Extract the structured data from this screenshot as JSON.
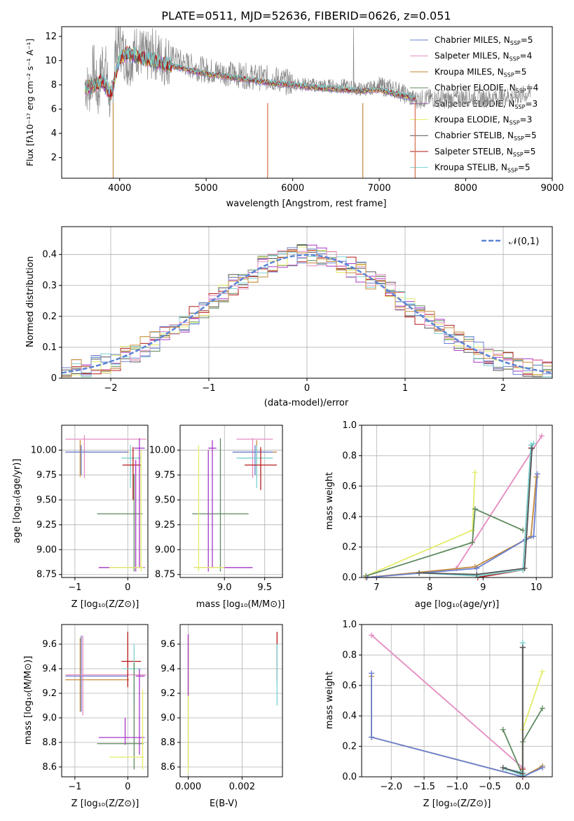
{
  "title": "PLATE=0511, MJD=52636, FIBERID=0626, z=0.051",
  "model_colors": [
    "#6a80d0",
    "#e58bc0",
    "#c48a3c",
    "#5e8a5e",
    "#a637c6",
    "#e4ec6a",
    "#555555",
    "#b51a1a",
    "#7ad1d1"
  ],
  "chart_data": [
    {
      "id": "spectrum",
      "type": "line",
      "xlabel": "wavelength [Angstrom, rest frame]",
      "ylabel": "Flux [fλ10⁻¹⁷ erg cm⁻² s⁻¹ A⁻¹]",
      "xlim": [
        3330,
        9000
      ],
      "ylim": [
        0.3,
        12.8
      ],
      "xticks": [
        "4000",
        "5000",
        "6000",
        "7000",
        "8000",
        "9000"
      ],
      "yticks": [
        "2",
        "4",
        "6",
        "8",
        "10",
        "12"
      ],
      "grid": false,
      "legend": "top-right",
      "data_series": {
        "name": "data",
        "x": [
          3600,
          3650,
          3700,
          3750,
          3800,
          3850,
          3900,
          3950,
          4000,
          4100,
          4200,
          4300,
          4400,
          4500,
          4600,
          4800,
          5000,
          5200,
          5400,
          5600,
          5800,
          6000,
          6200,
          6400,
          6600,
          6800,
          7000,
          7200,
          7400,
          7600,
          7800,
          8000,
          8200,
          8400,
          8600,
          8750
        ],
        "y": [
          8.0,
          7.6,
          9.5,
          7.0,
          10.0,
          9.0,
          6.0,
          10.8,
          11.4,
          9.8,
          11.0,
          10.2,
          10.6,
          10.0,
          10.2,
          9.6,
          9.2,
          9.0,
          8.8,
          8.6,
          8.5,
          8.1,
          8.0,
          7.9,
          7.9,
          7.6,
          7.9,
          7.6,
          6.8,
          6.9,
          6.8,
          7.0,
          6.9,
          7.0,
          7.1,
          7.3
        ]
      },
      "model_series": {
        "x": [
          3600,
          3700,
          3800,
          3900,
          4000,
          4100,
          4200,
          4300,
          4400,
          4500,
          4600,
          4800,
          5000,
          5200,
          5400,
          5600,
          5800,
          6000,
          6200,
          6400,
          6600,
          6800,
          7000,
          7200,
          7400
        ],
        "y": [
          7.8,
          7.9,
          8.3,
          7.2,
          10.2,
          10.6,
          10.4,
          10.1,
          10.0,
          9.7,
          9.6,
          9.2,
          8.9,
          8.7,
          8.5,
          8.3,
          8.1,
          8.0,
          7.8,
          7.7,
          7.6,
          7.5,
          7.6,
          7.2,
          6.9
        ]
      },
      "legend_entries": [
        {
          "label": "Chabrier MILES, N",
          "n": "=5"
        },
        {
          "label": "Salpeter MILES, N",
          "n": "=4"
        },
        {
          "label": "Kroupa MILES, N",
          "n": "=5"
        },
        {
          "label": "Chabrier ELODIE, N",
          "n": "=4"
        },
        {
          "label": "Salpeter ELODIE, N",
          "n": "=3"
        },
        {
          "label": "Kroupa ELODIE, N",
          "n": "=3"
        },
        {
          "label": "Chabrier STELIB, N",
          "n": "=5"
        },
        {
          "label": "Salpeter STELIB, N",
          "n": "=5"
        },
        {
          "label": "Kroupa STELIB, N",
          "n": "=5"
        }
      ]
    },
    {
      "id": "residuals",
      "type": "line",
      "xlabel": "(data-model)/error",
      "ylabel": "Normed distribution",
      "xlim": [
        -2.5,
        2.5
      ],
      "ylim": [
        0,
        0.49
      ],
      "xticks": [
        -2,
        -1,
        0,
        1,
        2
      ],
      "yticks": [
        0.0,
        0.1,
        0.2,
        0.3,
        0.4
      ],
      "grid": true,
      "legend": "top-right",
      "legend_label": "𝒩(0,1)",
      "gaussian": {
        "mu": 0,
        "sigma": 1,
        "color": "#5b84d4"
      }
    },
    {
      "id": "age_vs_Z",
      "type": "scatter",
      "xlabel": "Z [log₁₀(Z/Z⊙)]",
      "ylabel": "age  [log₁₀(age/yr)]",
      "xlim": [
        -1.25,
        0.38
      ],
      "ylim": [
        8.72,
        10.25
      ],
      "xticks": [
        -1,
        0
      ],
      "yticks": [
        "8.75",
        "9.00",
        "9.25",
        "9.50",
        "9.75",
        "10.00"
      ],
      "grid": true,
      "crosses": [
        {
          "x": -0.82,
          "y": 10.11,
          "xe": [
            -1.18,
            0.35
          ],
          "ye": [
            9.72,
            10.15
          ],
          "c": 1
        },
        {
          "x": -0.9,
          "y": 9.98,
          "xe": [
            -1.18,
            0.02
          ],
          "ye": [
            9.73,
            10.1
          ],
          "c": 2
        },
        {
          "x": -0.88,
          "y": 9.98,
          "xe": [
            -1.18,
            0.0
          ],
          "ye": [
            9.75,
            10.05
          ],
          "c": 0
        },
        {
          "x": 0.05,
          "y": 9.92,
          "xe": [
            -0.12,
            0.25
          ],
          "ye": [
            9.62,
            10.05
          ],
          "c": 8
        },
        {
          "x": 0.1,
          "y": 9.85,
          "xe": [
            -0.1,
            0.25
          ],
          "ye": [
            9.5,
            10.03
          ],
          "c": 7
        },
        {
          "x": 0.12,
          "y": 9.36,
          "xe": [
            -0.58,
            0.28
          ],
          "ye": [
            8.78,
            9.76
          ],
          "c": 3
        },
        {
          "x": 0.22,
          "y": 10.02,
          "xe": [
            0.12,
            0.32
          ],
          "ye": [
            8.82,
            10.12
          ],
          "c": 4
        },
        {
          "x": 0.15,
          "y": 8.82,
          "xe": [
            -0.55,
            0.32
          ],
          "ye": [
            8.78,
            9.9
          ],
          "c": 4
        },
        {
          "x": 0.25,
          "y": 8.82,
          "xe": [
            -0.35,
            0.3
          ],
          "ye": [
            8.78,
            10.0
          ],
          "c": 5
        }
      ]
    },
    {
      "id": "age_vs_mass",
      "type": "scatter",
      "xlabel": "mass [log₁₀(M/M⊙)]",
      "ylabel": "",
      "xlim": [
        8.45,
        9.72
      ],
      "ylim": [
        8.72,
        10.25
      ],
      "xticks": [
        "9.0",
        "9.5"
      ],
      "yticks": [
        "8.75",
        "9.00",
        "9.25",
        "9.50",
        "9.75",
        "10.00"
      ],
      "grid": true,
      "crosses": [
        {
          "x": 9.35,
          "y": 10.11,
          "xe": [
            9.15,
            9.6
          ],
          "ye": [
            9.72,
            10.12
          ],
          "c": 1
        },
        {
          "x": 9.4,
          "y": 9.98,
          "xe": [
            9.12,
            9.65
          ],
          "ye": [
            9.73,
            10.1
          ],
          "c": 2
        },
        {
          "x": 9.38,
          "y": 9.98,
          "xe": [
            9.1,
            9.6
          ],
          "ye": [
            9.75,
            10.05
          ],
          "c": 0
        },
        {
          "x": 9.4,
          "y": 9.92,
          "xe": [
            9.15,
            9.6
          ],
          "ye": [
            9.62,
            10.05
          ],
          "c": 8
        },
        {
          "x": 9.45,
          "y": 9.85,
          "xe": [
            9.25,
            9.65
          ],
          "ye": [
            9.6,
            10.03
          ],
          "c": 7
        },
        {
          "x": 8.95,
          "y": 9.36,
          "xe": [
            8.6,
            9.3
          ],
          "ye": [
            8.78,
            10.12
          ],
          "c": 3
        },
        {
          "x": 8.85,
          "y": 10.02,
          "xe": [
            8.8,
            8.9
          ],
          "ye": [
            8.82,
            10.1
          ],
          "c": 4
        },
        {
          "x": 8.8,
          "y": 8.82,
          "xe": [
            8.62,
            9.35
          ],
          "ye": [
            8.78,
            10.0
          ],
          "c": 4
        },
        {
          "x": 8.68,
          "y": 8.82,
          "xe": [
            8.62,
            9.0
          ],
          "ye": [
            8.78,
            10.05
          ],
          "c": 5
        }
      ]
    },
    {
      "id": "weight_vs_age",
      "type": "line",
      "xlabel": "age  [log₁₀(age/yr)]",
      "ylabel": "mass weight",
      "xlim": [
        6.72,
        10.3
      ],
      "ylim": [
        0,
        1.0
      ],
      "xticks": [
        7,
        8,
        9,
        10
      ],
      "yticks": [
        "0.0",
        "0.2",
        "0.4",
        "0.6",
        "0.8",
        "1.0"
      ],
      "grid": true,
      "series": [
        {
          "c": 1,
          "x": [
            8.5,
            10.1
          ],
          "y": [
            0.06,
            0.93
          ]
        },
        {
          "c": 5,
          "x": [
            6.8,
            8.8,
            8.85
          ],
          "y": [
            0.01,
            0.31,
            0.69
          ]
        },
        {
          "c": 3,
          "x": [
            6.8,
            8.8,
            8.85,
            9.75
          ],
          "y": [
            0.01,
            0.23,
            0.45,
            0.31
          ]
        },
        {
          "c": 2,
          "x": [
            6.8,
            8.85,
            9.8,
            9.9,
            10.0
          ],
          "y": [
            0.0,
            0.07,
            0.25,
            0.27,
            0.66
          ]
        },
        {
          "c": 0,
          "x": [
            6.82,
            8.88,
            9.8,
            9.95,
            10.02
          ],
          "y": [
            0.0,
            0.06,
            0.25,
            0.27,
            0.68
          ]
        },
        {
          "c": 7,
          "x": [
            8.9,
            9.75,
            9.9
          ],
          "y": [
            0.0,
            0.05,
            0.85
          ]
        },
        {
          "c": 8,
          "x": [
            7.8,
            8.9,
            9.75,
            9.9,
            9.95
          ],
          "y": [
            0.03,
            0.01,
            0.05,
            0.87,
            0.88
          ]
        },
        {
          "c": 6,
          "x": [
            7.8,
            8.88,
            9.78,
            9.92
          ],
          "y": [
            0.03,
            0.02,
            0.06,
            0.85
          ]
        }
      ]
    },
    {
      "id": "mass_vs_Z",
      "type": "scatter",
      "xlabel": "Z [log₁₀(Z/Z⊙)]",
      "ylabel": "mass [log₁₀(M/M⊙)]",
      "xlim": [
        -1.25,
        0.38
      ],
      "ylim": [
        8.52,
        9.76
      ],
      "xticks": [
        -1,
        0
      ],
      "yticks": [
        "8.6",
        "8.8",
        "9.0",
        "9.2",
        "9.4",
        "9.6"
      ],
      "grid": true,
      "crosses": [
        {
          "x": -0.9,
          "y": 9.31,
          "xe": [
            -1.18,
            0.02
          ],
          "ye": [
            9.05,
            9.65
          ],
          "c": 2
        },
        {
          "x": -0.88,
          "y": 9.34,
          "xe": [
            -1.18,
            0.0
          ],
          "ye": [
            9.05,
            9.67
          ],
          "c": 0
        },
        {
          "x": -0.85,
          "y": 9.35,
          "xe": [
            -1.18,
            0.35
          ],
          "ye": [
            9.02,
            9.67
          ],
          "c": 1
        },
        {
          "x": 0.0,
          "y": 9.46,
          "xe": [
            -0.12,
            0.25
          ],
          "ye": [
            9.25,
            9.7
          ],
          "c": 7
        },
        {
          "x": 0.12,
          "y": 9.4,
          "xe": [
            -0.1,
            0.25
          ],
          "ye": [
            9.1,
            9.6
          ],
          "c": 8
        },
        {
          "x": 0.12,
          "y": 8.79,
          "xe": [
            -0.58,
            0.3
          ],
          "ye": [
            8.58,
            9.45
          ],
          "c": 3
        },
        {
          "x": 0.22,
          "y": 9.34,
          "xe": [
            0.15,
            0.32
          ],
          "ye": [
            8.7,
            9.4
          ],
          "c": 4
        },
        {
          "x": -0.05,
          "y": 8.84,
          "xe": [
            -0.55,
            0.32
          ],
          "ye": [
            8.78,
            9.0
          ],
          "c": 4
        },
        {
          "x": 0.28,
          "y": 8.68,
          "xe": [
            -0.35,
            0.3
          ],
          "ye": [
            8.58,
            9.23
          ],
          "c": 5
        }
      ]
    },
    {
      "id": "mass_vs_ebv",
      "type": "scatter",
      "xlabel": "E(B-V)",
      "ylabel": "",
      "xlim": [
        -0.0003,
        0.0035
      ],
      "ylim": [
        8.52,
        9.76
      ],
      "xticks": [
        "0.000",
        "0.002"
      ],
      "yticks": [
        "8.6",
        "8.8",
        "9.0",
        "9.2",
        "9.4",
        "9.6"
      ],
      "grid": true,
      "crosses": [
        {
          "x": 0.0,
          "y": 9.3,
          "ye": [
            8.6,
            9.68
          ],
          "c": 2
        },
        {
          "x": 0.0,
          "y": 9.25,
          "ye": [
            8.55,
            9.65
          ],
          "c": 5
        },
        {
          "x": 0.0,
          "y": 9.3,
          "ye": [
            9.18,
            9.68
          ],
          "c": 4
        },
        {
          "x": 0.0033,
          "y": 9.5,
          "ye": [
            9.3,
            9.7
          ],
          "c": 7
        },
        {
          "x": 0.0033,
          "y": 9.4,
          "ye": [
            9.1,
            9.6
          ],
          "c": 8
        }
      ]
    },
    {
      "id": "weight_vs_Z",
      "type": "line",
      "xlabel": "Z [log₁₀(Z/Z⊙)]",
      "ylabel": "mass weight",
      "xlim": [
        -2.45,
        0.45
      ],
      "ylim": [
        0,
        1.0
      ],
      "xticks": [
        "−2.0",
        "−1.5",
        "−1.0",
        "−0.5",
        "0.0"
      ],
      "yticks": [
        "0.0",
        "0.2",
        "0.4",
        "0.6",
        "0.8",
        "1.0"
      ],
      "xtick_values": [
        -2.0,
        -1.5,
        -1.0,
        -0.5,
        0.0
      ],
      "grid": true,
      "series": [
        {
          "c": 1,
          "x": [
            -2.3,
            0.0
          ],
          "y": [
            0.93,
            0.06
          ]
        },
        {
          "c": 5,
          "x": [
            0.0,
            0.0,
            0.3
          ],
          "y": [
            0.01,
            0.31,
            0.69
          ]
        },
        {
          "c": 3,
          "x": [
            -0.3,
            0.0,
            0.0,
            0.3
          ],
          "y": [
            0.31,
            0.01,
            0.23,
            0.45
          ]
        },
        {
          "c": 2,
          "x": [
            -2.3,
            -2.3,
            0.0,
            0.3
          ],
          "y": [
            0.66,
            0.26,
            0.0,
            0.07
          ]
        },
        {
          "c": 0,
          "x": [
            -2.3,
            -2.3,
            0.0,
            0.3
          ],
          "y": [
            0.68,
            0.26,
            0.0,
            0.06
          ]
        },
        {
          "c": 7,
          "x": [
            0.0,
            0.0,
            0.0
          ],
          "y": [
            0.0,
            0.05,
            0.85
          ]
        },
        {
          "c": 8,
          "x": [
            0.0,
            0.0,
            -0.25,
            0.0
          ],
          "y": [
            0.88,
            0.01,
            0.05,
            0.03
          ]
        },
        {
          "c": 6,
          "x": [
            0.0,
            0.0,
            -0.3
          ],
          "y": [
            0.85,
            0.02,
            0.06
          ]
        }
      ]
    }
  ]
}
